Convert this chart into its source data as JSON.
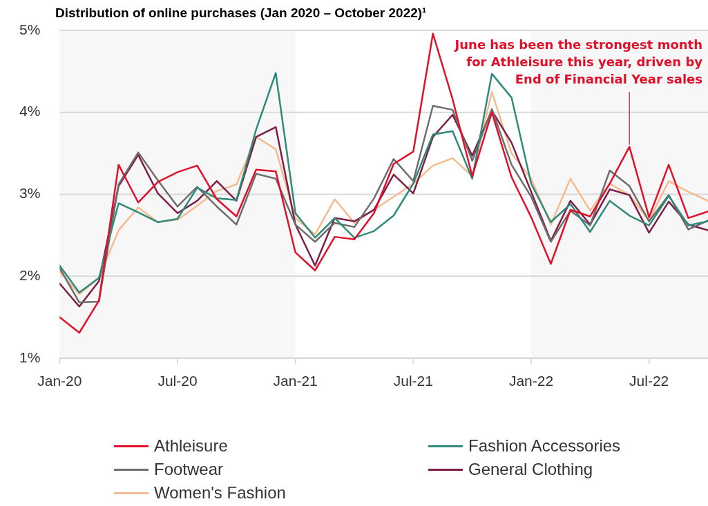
{
  "chart_data": {
    "type": "line",
    "title": "Distribution of online purchases (Jan 2020 – October 2022)¹",
    "x": [
      "2020-01",
      "2020-02",
      "2020-03",
      "2020-04",
      "2020-05",
      "2020-06",
      "2020-07",
      "2020-08",
      "2020-09",
      "2020-10",
      "2020-11",
      "2020-12",
      "2021-01",
      "2021-02",
      "2021-03",
      "2021-04",
      "2021-05",
      "2021-06",
      "2021-07",
      "2021-08",
      "2021-09",
      "2021-10",
      "2021-11",
      "2021-12",
      "2022-01",
      "2022-02",
      "2022-03",
      "2022-04",
      "2022-05",
      "2022-06",
      "2022-07",
      "2022-08",
      "2022-09",
      "2022-10"
    ],
    "series": [
      {
        "name": "Athleisure",
        "color": "#e0102a",
        "values": [
          1.5,
          1.31,
          1.7,
          3.36,
          2.9,
          3.15,
          3.27,
          3.35,
          2.94,
          2.73,
          3.3,
          3.28,
          2.29,
          2.07,
          2.48,
          2.45,
          2.77,
          3.37,
          3.52,
          4.96,
          4.16,
          3.22,
          4.0,
          3.21,
          2.72,
          2.15,
          2.81,
          2.73,
          3.13,
          3.58,
          2.72,
          3.36,
          2.71,
          2.79
        ]
      },
      {
        "name": "Fashion Accessories",
        "color": "#2e8b7a",
        "values": [
          2.13,
          1.8,
          1.98,
          2.89,
          2.78,
          2.66,
          2.7,
          3.08,
          2.95,
          2.93,
          3.79,
          4.48,
          2.77,
          2.47,
          2.71,
          2.47,
          2.55,
          2.74,
          3.13,
          3.73,
          3.77,
          3.19,
          4.47,
          4.18,
          3.13,
          2.66,
          2.88,
          2.54,
          2.92,
          2.74,
          2.62,
          2.98,
          2.62,
          2.67
        ]
      },
      {
        "name": "Footwear",
        "color": "#6d6d6d",
        "values": [
          2.1,
          1.68,
          1.69,
          3.12,
          3.51,
          3.17,
          2.85,
          3.09,
          2.85,
          2.63,
          3.25,
          3.19,
          2.63,
          2.42,
          2.65,
          2.6,
          2.95,
          3.43,
          3.16,
          4.08,
          4.03,
          3.41,
          4.04,
          3.36,
          2.97,
          2.42,
          2.8,
          2.62,
          3.29,
          3.1,
          2.67,
          2.99,
          2.57,
          2.68
        ]
      },
      {
        "name": "General Clothing",
        "color": "#7d1d48",
        "values": [
          1.91,
          1.63,
          1.94,
          3.1,
          3.48,
          3.01,
          2.77,
          2.92,
          3.16,
          2.92,
          3.7,
          3.82,
          2.63,
          2.13,
          2.71,
          2.67,
          2.81,
          3.24,
          3.01,
          3.7,
          3.97,
          3.47,
          4.02,
          3.63,
          3.03,
          2.43,
          2.92,
          2.63,
          3.06,
          2.99,
          2.53,
          2.91,
          2.63,
          2.56
        ]
      },
      {
        "name": "Women's Fashion",
        "color": "#f5bb8f",
        "values": [
          2.06,
          1.78,
          1.98,
          2.56,
          2.84,
          2.66,
          2.69,
          2.86,
          3.04,
          3.12,
          3.7,
          3.55,
          2.71,
          2.51,
          2.94,
          2.65,
          2.81,
          2.97,
          3.13,
          3.35,
          3.44,
          3.22,
          4.25,
          3.5,
          3.19,
          2.63,
          3.19,
          2.8,
          3.13,
          2.99,
          2.68,
          3.16,
          3.03,
          2.92
        ]
      }
    ],
    "xlim": [
      "2020-01",
      "2022-10"
    ],
    "xticks": [
      {
        "value": "2020-01",
        "label": "Jan-20"
      },
      {
        "value": "2020-07",
        "label": "Jul-20"
      },
      {
        "value": "2021-01",
        "label": "Jan-21"
      },
      {
        "value": "2021-07",
        "label": "Jul-21"
      },
      {
        "value": "2022-01",
        "label": "Jan-22"
      },
      {
        "value": "2022-07",
        "label": "Jul-22"
      }
    ],
    "ylim": [
      1,
      5
    ],
    "yticks": [
      {
        "value": 1,
        "label": "1%"
      },
      {
        "value": 2,
        "label": "2%"
      },
      {
        "value": 3,
        "label": "3%"
      },
      {
        "value": 4,
        "label": "4%"
      },
      {
        "value": 5,
        "label": "5%"
      }
    ],
    "bands": [
      {
        "axis": "x",
        "from": "2020-01",
        "to": "2021-01",
        "color": "#f7f7f7"
      },
      {
        "axis": "x",
        "from": "2022-01",
        "to": "2022-10",
        "color": "#f7f7f7"
      }
    ],
    "annotations": [
      {
        "text": "June has been the strongest month for Athleisure this year, driven by End of Financial Year sales",
        "x": "2022-06",
        "y": 3.58
      }
    ],
    "grid": "y",
    "legend": "bottom",
    "marker": "none",
    "line_style": "solid"
  }
}
